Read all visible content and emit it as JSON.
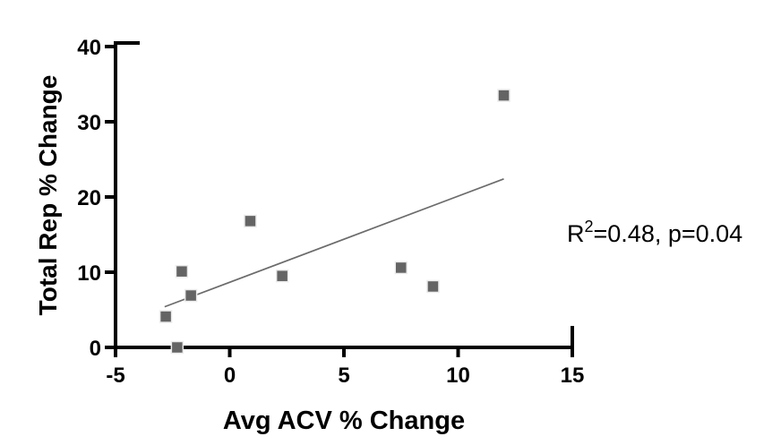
{
  "chart_data": {
    "type": "scatter",
    "title": "",
    "xlabel": "Avg ACV % Change",
    "ylabel": "Total Rep % Change",
    "xlim": [
      -5,
      15
    ],
    "ylim": [
      0,
      40
    ],
    "xticks": [
      -5,
      0,
      5,
      10,
      15
    ],
    "xtick_labels": [
      "-5",
      "0",
      "5",
      "10",
      "15"
    ],
    "yticks": [
      0,
      10,
      20,
      30,
      40
    ],
    "ytick_labels": [
      "0",
      "10",
      "20",
      "30",
      "40"
    ],
    "grid": false,
    "legend": "none",
    "points": [
      {
        "x": -2.8,
        "y": 4.1
      },
      {
        "x": -2.3,
        "y": 0.0
      },
      {
        "x": -2.1,
        "y": 10.1
      },
      {
        "x": -1.7,
        "y": 6.9
      },
      {
        "x": 0.9,
        "y": 16.8
      },
      {
        "x": 2.3,
        "y": 9.5
      },
      {
        "x": 7.5,
        "y": 10.6
      },
      {
        "x": 8.9,
        "y": 8.1
      },
      {
        "x": 12.0,
        "y": 33.5
      }
    ],
    "trend_line": {
      "x1": -2.85,
      "y1": 5.4,
      "x2": 12.0,
      "y2": 22.4
    },
    "annotation": {
      "base": "R",
      "superscript": "2",
      "rest": "=0.48, p=0.04",
      "full_text": "R²=0.48, p=0.04"
    },
    "marker": {
      "shape": "square",
      "color": "#646464",
      "halo_color": "#ebebeb",
      "size": 13
    },
    "colors": {
      "axis": "#000000",
      "trend_line": "#6b6b6b",
      "text": "#000000",
      "background": "#ffffff"
    }
  }
}
